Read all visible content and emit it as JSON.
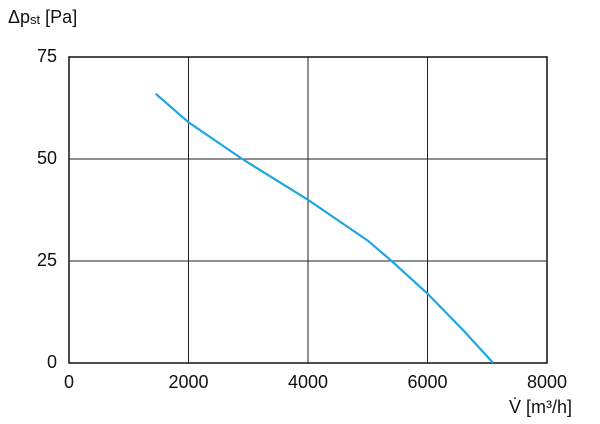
{
  "chart_data": {
    "type": "line",
    "ylabel": {
      "main": "Δp",
      "sub": "st",
      "unit": " [Pa]"
    },
    "xlabel": "V̇ [m³/h]",
    "x": [
      1450,
      2000,
      2900,
      4000,
      5000,
      5400,
      6000,
      6600,
      7100
    ],
    "series": [
      {
        "color": "#1ea7e1",
        "values": [
          66,
          59,
          50,
          40,
          30,
          25,
          17,
          8,
          0
        ]
      }
    ],
    "xlim": [
      0,
      8000
    ],
    "xticks": [
      0,
      2000,
      4000,
      6000,
      8000
    ],
    "ylim": [
      0,
      75
    ],
    "yticks": [
      0,
      25,
      50,
      75
    ],
    "grid": true
  }
}
